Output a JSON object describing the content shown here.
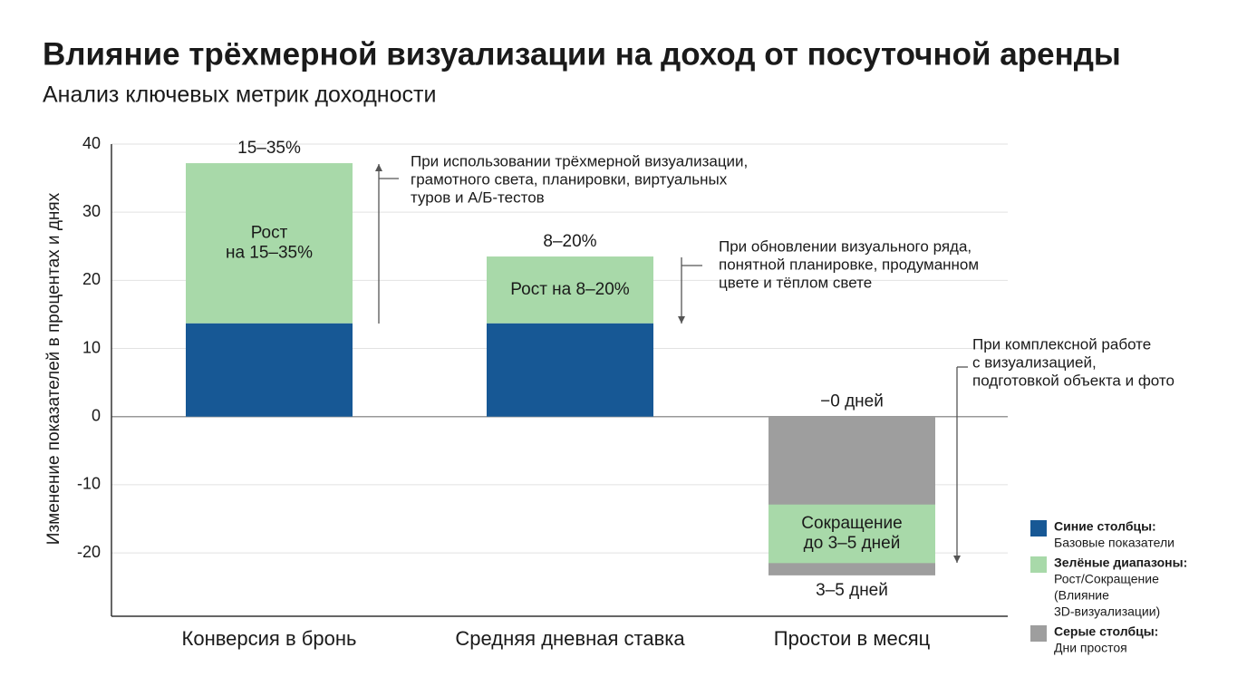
{
  "chart_data": {
    "type": "bar",
    "title": "Влияние трёхмерной визуализации на доход от посуточной аренды",
    "subtitle": "Анализ ключевых метрик доходности",
    "y_label": "Изменение показателей в процентах и днях",
    "categories": [
      "Конверсия в бронь",
      "Средняя дневная ставка",
      "Простои в месяц"
    ],
    "ylim": [
      -29.3,
      40
    ],
    "yticks": [
      40,
      30,
      20,
      10,
      0,
      -10,
      -20
    ],
    "grid": true,
    "series": [
      {
        "name": "Синие столбцы:",
        "description": [
          "Базовые показатели"
        ],
        "color": "#175895",
        "values": [
          13.7,
          13.7,
          null
        ]
      },
      {
        "name": "Зелёные диапазоны:",
        "description": [
          "Рост/Сокращение",
          "(Влияние",
          "3D-визуализации)"
        ],
        "color": "#a8d9a9",
        "ranges": [
          [
            13.7,
            37.2
          ],
          [
            13.7,
            23.5
          ],
          [
            -21.5,
            -12.9
          ]
        ]
      },
      {
        "name": "Серые столбцы:",
        "description": [
          "Дни простоя"
        ],
        "color": "#9e9e9e",
        "values": [
          null,
          null,
          -23.3
        ]
      }
    ],
    "top_labels": [
      "15–35%",
      "8–20%",
      "−0 дней"
    ],
    "inner_labels": [
      [
        "Рост",
        "на 15–35%"
      ],
      [
        "Рост на 8–20%"
      ],
      [
        "Сокращение",
        "до 3–5 дней"
      ]
    ],
    "bottom_labels": [
      null,
      null,
      "3–5 дней"
    ],
    "annotations": [
      {
        "lines": [
          "При использовании трёхмерной визуализации,",
          "грамотного света, планировки, виртуальных",
          "туров и А/Б-тестов"
        ]
      },
      {
        "lines": [
          "При обновлении визуального ряда,",
          "понятной планировке, продуманном",
          "цвете и тёплом свете"
        ]
      },
      {
        "lines": [
          "При комплексной работе",
          "с визуализацией,",
          "подготовкой объекта и фото"
        ]
      }
    ]
  }
}
